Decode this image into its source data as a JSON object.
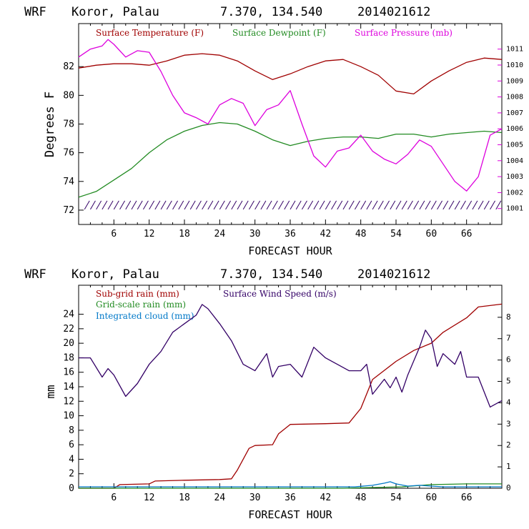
{
  "chart_data": [
    {
      "type": "line",
      "header": {
        "model": "WRF",
        "location": "Koror, Palau",
        "coords": "7.370, 134.540",
        "init": "2014021612"
      },
      "xlabel": "FORECAST HOUR",
      "ylabel": "Degrees F",
      "xlim": [
        0,
        72
      ],
      "xticks": [
        6,
        12,
        18,
        24,
        30,
        36,
        42,
        48,
        54,
        60,
        66
      ],
      "xtick_labels": [
        "6",
        "12",
        "18",
        "24",
        "30",
        "36",
        "42",
        "48",
        "54",
        "60",
        "66"
      ],
      "ylim": [
        71,
        85
      ],
      "yticks": [
        72,
        74,
        76,
        78,
        80,
        82
      ],
      "ytick_labels": [
        "72",
        "74",
        "76",
        "78",
        "80",
        "82"
      ],
      "y2lim": [
        1000.0,
        1012.6
      ],
      "y2ticks": [
        1001,
        1002,
        1003,
        1004,
        1005,
        1006,
        1007,
        1008,
        1009,
        1010,
        1011
      ],
      "y2tick_labels": [
        "1001",
        "1002",
        "1003",
        "1004",
        "1005",
        "1006",
        "1007",
        "1008",
        "1009",
        "1010",
        "1011"
      ],
      "legend": [
        "Surface Temperature (F)",
        "Surface Dewpoint (F)",
        "Surface Pressure (mb)"
      ],
      "series": [
        {
          "name": "Surface Temperature (F)",
          "color": "#a00000",
          "axis": "left",
          "x": [
            0,
            3,
            6,
            9,
            12,
            15,
            18,
            21,
            24,
            27,
            30,
            33,
            36,
            39,
            42,
            45,
            48,
            51,
            54,
            57,
            60,
            63,
            66,
            69,
            72
          ],
          "values": [
            81.9,
            82.1,
            82.2,
            82.2,
            82.1,
            82.4,
            82.8,
            82.9,
            82.8,
            82.4,
            81.7,
            81.1,
            81.5,
            82.0,
            82.4,
            82.5,
            82.0,
            81.4,
            80.3,
            80.1,
            81.0,
            81.7,
            82.3,
            82.6,
            82.5
          ]
        },
        {
          "name": "Surface Dewpoint (F)",
          "color": "#228b22",
          "axis": "left",
          "x": [
            0,
            3,
            6,
            9,
            12,
            15,
            18,
            21,
            24,
            27,
            30,
            33,
            36,
            39,
            42,
            45,
            48,
            51,
            54,
            57,
            60,
            63,
            66,
            69,
            72
          ],
          "values": [
            72.9,
            73.3,
            74.1,
            74.9,
            76.0,
            76.9,
            77.5,
            77.9,
            78.1,
            78.0,
            77.5,
            76.9,
            76.5,
            76.8,
            77.0,
            77.1,
            77.1,
            77.0,
            77.3,
            77.3,
            77.1,
            77.3,
            77.4,
            77.5,
            77.4
          ]
        },
        {
          "name": "Surface Pressure (mb)",
          "color": "#dd00dd",
          "axis": "right",
          "x": [
            0,
            2,
            4,
            5,
            6,
            8,
            10,
            12,
            14,
            16,
            18,
            20,
            22,
            24,
            26,
            28,
            30,
            32,
            34,
            36,
            38,
            40,
            42,
            44,
            46,
            48,
            50,
            52,
            54,
            56,
            58,
            60,
            62,
            64,
            66,
            68,
            70,
            72
          ],
          "values": [
            1010.5,
            1011.0,
            1011.2,
            1011.6,
            1011.3,
            1010.5,
            1010.9,
            1010.8,
            1009.6,
            1008.1,
            1007.0,
            1006.7,
            1006.3,
            1007.5,
            1007.9,
            1007.6,
            1006.2,
            1007.2,
            1007.5,
            1008.4,
            1006.3,
            1004.3,
            1003.6,
            1004.6,
            1004.8,
            1005.6,
            1004.6,
            1004.1,
            1003.8,
            1004.4,
            1005.3,
            1004.9,
            1003.8,
            1002.7,
            1002.1,
            1003.0,
            1005.6,
            1006.0
          ]
        }
      ],
      "wind_barbs": {
        "color": "#330066",
        "level": 72.2
      }
    },
    {
      "type": "line",
      "header": {
        "model": "WRF",
        "location": "Koror, Palau",
        "coords": "7.370, 134.540",
        "init": "2014021612"
      },
      "xlabel": "FORECAST HOUR",
      "ylabel": "mm",
      "xlim": [
        0,
        72
      ],
      "xticks": [
        6,
        12,
        18,
        24,
        30,
        36,
        42,
        48,
        54,
        60,
        66
      ],
      "xtick_labels": [
        "6",
        "12",
        "18",
        "24",
        "30",
        "36",
        "42",
        "48",
        "54",
        "60",
        "66"
      ],
      "ylim": [
        0,
        28
      ],
      "yticks": [
        0,
        2,
        4,
        6,
        8,
        10,
        12,
        14,
        16,
        18,
        20,
        22,
        24
      ],
      "ytick_labels": [
        "0",
        "2",
        "4",
        "6",
        "8",
        "10",
        "12",
        "14",
        "16",
        "18",
        "20",
        "22",
        "24"
      ],
      "y2lim": [
        0,
        9.5
      ],
      "y2ticks": [
        0,
        1,
        2,
        3,
        4,
        5,
        6,
        7,
        8
      ],
      "y2tick_labels": [
        "0",
        "1",
        "2",
        "3",
        "4",
        "5",
        "6",
        "7",
        "8"
      ],
      "legend": [
        "Sub-grid rain (mm)",
        "Grid-scale rain (mm)",
        "Integrated cloud (mm)",
        "Surface Wind Speed (m/s)"
      ],
      "series": [
        {
          "name": "Sub-grid rain (mm)",
          "color": "#a00000",
          "axis": "left",
          "x": [
            0,
            6,
            7,
            12,
            13,
            18,
            24,
            26,
            27,
            29,
            30,
            33,
            34,
            36,
            42,
            46,
            48,
            50,
            54,
            57,
            60,
            62,
            66,
            68,
            72
          ],
          "values": [
            0,
            0,
            0.5,
            0.6,
            1.0,
            1.1,
            1.2,
            1.3,
            2.5,
            5.5,
            5.9,
            6.0,
            7.5,
            8.8,
            8.9,
            9.0,
            11.0,
            15.0,
            17.5,
            19.0,
            20.0,
            21.5,
            23.5,
            25.0,
            25.4
          ]
        },
        {
          "name": "Grid-scale rain (mm)",
          "color": "#228b22",
          "axis": "left",
          "x": [
            0,
            45,
            50,
            55,
            60,
            66,
            72
          ],
          "values": [
            0,
            0,
            0.1,
            0.2,
            0.5,
            0.6,
            0.6
          ]
        },
        {
          "name": "Integrated cloud (mm)",
          "color": "#0078c8",
          "axis": "left",
          "x": [
            0,
            47,
            50,
            52,
            53,
            54,
            56,
            58,
            60,
            62,
            72
          ],
          "values": [
            0.2,
            0.2,
            0.4,
            0.7,
            0.9,
            0.6,
            0.3,
            0.4,
            0.3,
            0.2,
            0.2
          ]
        },
        {
          "name": "Surface Wind Speed (m/s)",
          "color": "#330066",
          "axis": "right",
          "x": [
            0,
            2,
            4,
            5,
            6,
            8,
            10,
            12,
            14,
            16,
            18,
            20,
            21,
            22,
            24,
            26,
            28,
            30,
            32,
            33,
            34,
            36,
            38,
            40,
            42,
            44,
            46,
            48,
            49,
            50,
            52,
            53,
            54,
            55,
            56,
            58,
            59,
            60,
            61,
            62,
            64,
            65,
            66,
            68,
            70,
            72
          ],
          "values": [
            6.1,
            6.1,
            5.2,
            5.6,
            5.3,
            4.3,
            4.9,
            5.8,
            6.4,
            7.3,
            7.7,
            8.1,
            8.6,
            8.4,
            7.7,
            6.9,
            5.8,
            5.5,
            6.3,
            5.2,
            5.7,
            5.8,
            5.2,
            6.6,
            6.1,
            5.8,
            5.5,
            5.5,
            5.8,
            4.4,
            5.1,
            4.7,
            5.2,
            4.5,
            5.3,
            6.6,
            7.4,
            7.0,
            5.7,
            6.3,
            5.8,
            6.4,
            5.2,
            5.2,
            3.8,
            4.1
          ]
        }
      ]
    }
  ]
}
